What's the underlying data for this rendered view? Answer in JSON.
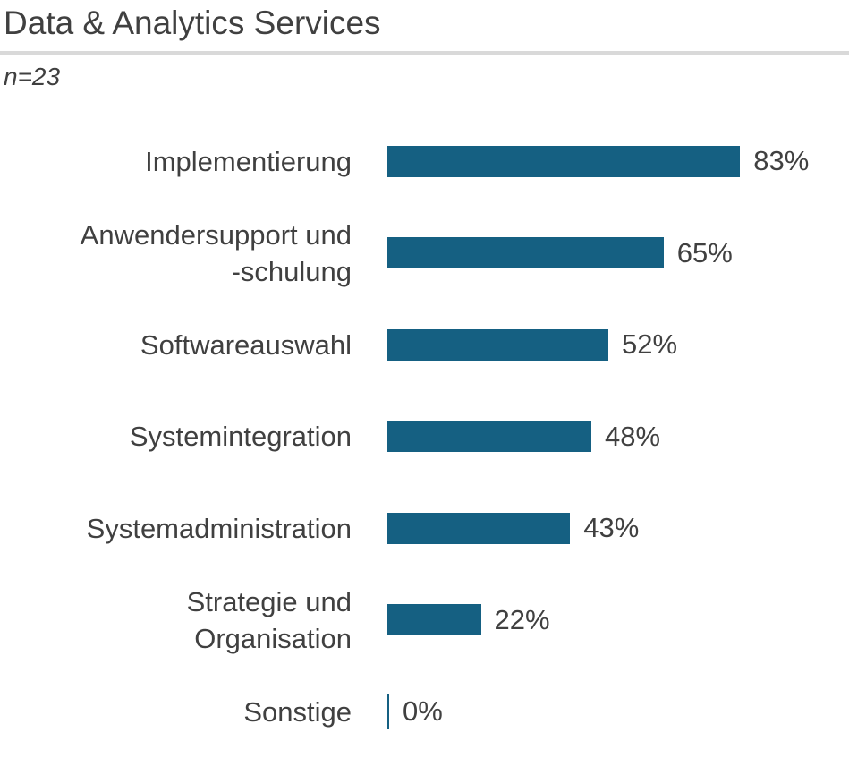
{
  "header": {
    "title": "Data & Analytics Services",
    "sample_size": "n=23"
  },
  "chart_data": {
    "type": "bar",
    "orientation": "horizontal",
    "title": "Data & Analytics Services",
    "subtitle": "n=23",
    "categories": [
      "Implementierung",
      "Anwendersupport und\n-schulung",
      "Softwareauswahl",
      "Systemintegration",
      "Systemadministration",
      "Strategie und\nOrganisation",
      "Sonstige"
    ],
    "values": [
      83,
      65,
      52,
      48,
      43,
      22,
      0
    ],
    "value_suffix": "%",
    "xlim": [
      0,
      100
    ],
    "grid": false,
    "legend": false,
    "data_labels": "outside-end",
    "colors": {
      "bar": "#156082",
      "text": "#404040",
      "divider": "#d9d9d9"
    }
  }
}
